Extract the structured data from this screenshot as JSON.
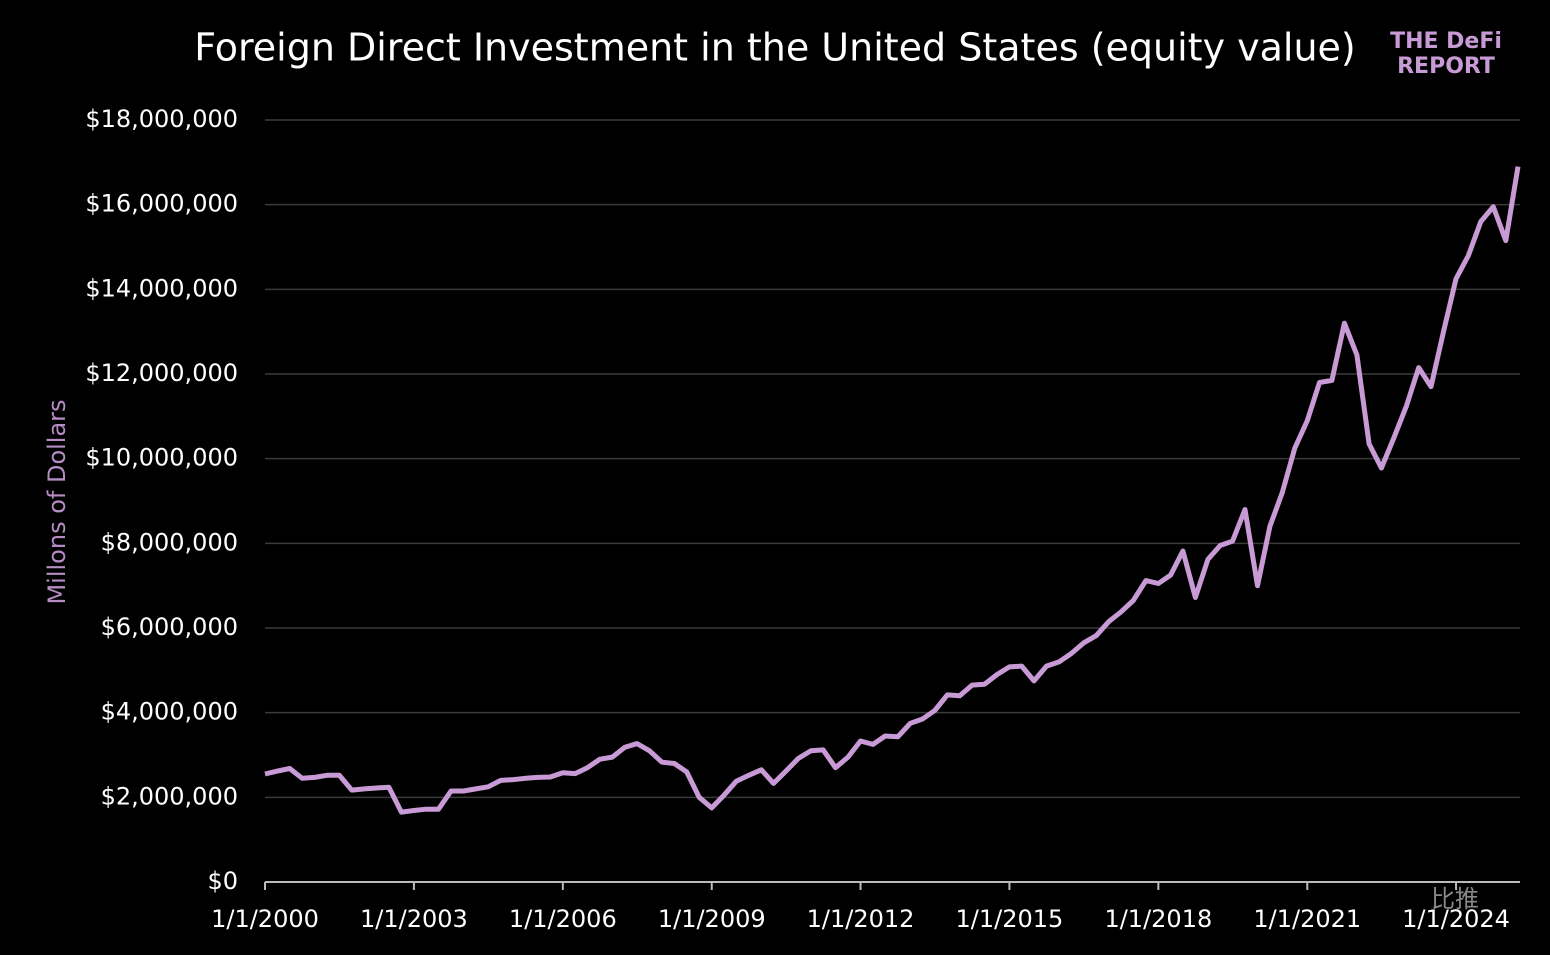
{
  "chart_data": {
    "type": "line",
    "title": "Foreign Direct Investment in the United States (equity value)",
    "logo": [
      "THE DeFi",
      "REPORT"
    ],
    "watermark": "比推",
    "y_label": "Millons of Dollars",
    "x": [
      "1/1/2000",
      "4/1/2000",
      "7/1/2000",
      "10/1/2000",
      "1/1/2001",
      "4/1/2001",
      "7/1/2001",
      "10/1/2001",
      "1/1/2002",
      "4/1/2002",
      "7/1/2002",
      "10/1/2002",
      "1/1/2003",
      "4/1/2003",
      "7/1/2003",
      "10/1/2003",
      "1/1/2004",
      "4/1/2004",
      "7/1/2004",
      "10/1/2004",
      "1/1/2005",
      "4/1/2005",
      "7/1/2005",
      "10/1/2005",
      "1/1/2006",
      "4/1/2006",
      "7/1/2006",
      "10/1/2006",
      "1/1/2007",
      "4/1/2007",
      "7/1/2007",
      "10/1/2007",
      "1/1/2008",
      "4/1/2008",
      "7/1/2008",
      "10/1/2008",
      "1/1/2009",
      "4/1/2009",
      "7/1/2009",
      "10/1/2009",
      "1/1/2010",
      "4/1/2010",
      "7/1/2010",
      "10/1/2010",
      "1/1/2011",
      "4/1/2011",
      "7/1/2011",
      "10/1/2011",
      "1/1/2012",
      "4/1/2012",
      "7/1/2012",
      "10/1/2012",
      "1/1/2013",
      "4/1/2013",
      "7/1/2013",
      "10/1/2013",
      "1/1/2014",
      "4/1/2014",
      "7/1/2014",
      "10/1/2014",
      "1/1/2015",
      "4/1/2015",
      "7/1/2015",
      "10/1/2015",
      "1/1/2016",
      "4/1/2016",
      "7/1/2016",
      "10/1/2016",
      "1/1/2017",
      "4/1/2017",
      "7/1/2017",
      "10/1/2017",
      "1/1/2018",
      "4/1/2018",
      "7/1/2018",
      "10/1/2018",
      "1/1/2019",
      "4/1/2019",
      "7/1/2019",
      "10/1/2019",
      "1/1/2020",
      "4/1/2020",
      "7/1/2020",
      "10/1/2020",
      "1/1/2021",
      "4/1/2021",
      "7/1/2021",
      "10/1/2021",
      "1/1/2022",
      "4/1/2022",
      "7/1/2022",
      "10/1/2022",
      "1/1/2023",
      "4/1/2023",
      "7/1/2023",
      "10/1/2023",
      "1/1/2024",
      "4/1/2024",
      "7/1/2024",
      "10/1/2024",
      "1/1/2025",
      "4/1/2025"
    ],
    "series": [
      {
        "name": "Foreign Direct Investment",
        "color": "#c99bd6",
        "values": [
          2550000,
          2620000,
          2680000,
          2450000,
          2470000,
          2520000,
          2520000,
          2170000,
          2200000,
          2220000,
          2240000,
          1650000,
          1690000,
          1720000,
          1720000,
          2150000,
          2150000,
          2200000,
          2250000,
          2400000,
          2420000,
          2450000,
          2470000,
          2480000,
          2580000,
          2560000,
          2700000,
          2900000,
          2950000,
          3180000,
          3270000,
          3100000,
          2830000,
          2800000,
          2600000,
          2000000,
          1750000,
          2050000,
          2380000,
          2520000,
          2650000,
          2330000,
          2620000,
          2920000,
          3100000,
          3120000,
          2700000,
          2950000,
          3330000,
          3250000,
          3450000,
          3430000,
          3750000,
          3850000,
          4050000,
          4420000,
          4400000,
          4650000,
          4670000,
          4900000,
          5080000,
          5100000,
          4750000,
          5100000,
          5200000,
          5400000,
          5650000,
          5820000,
          6150000,
          6380000,
          6650000,
          7120000,
          7050000,
          7250000,
          7820000,
          6720000,
          7620000,
          7950000,
          8050000,
          8800000,
          7000000,
          8400000,
          9200000,
          10250000,
          10900000,
          11800000,
          11850000,
          13200000,
          12450000,
          10350000,
          9780000,
          10500000,
          11250000,
          12150000,
          11700000,
          13000000,
          14250000,
          14800000,
          15600000,
          15950000,
          15150000,
          16900000
        ]
      }
    ],
    "xlim": [
      "1/1/2000",
      "4/1/2025"
    ],
    "xticks": [
      "1/1/2000",
      "1/1/2003",
      "1/1/2006",
      "1/1/2009",
      "1/1/2012",
      "1/1/2015",
      "1/1/2018",
      "1/1/2021",
      "1/1/2024"
    ],
    "ylim": [
      0,
      18000000
    ],
    "yticks": [
      {
        "value": 0,
        "label": "$0"
      },
      {
        "value": 2000000,
        "label": "$2,000,000"
      },
      {
        "value": 4000000,
        "label": "$4,000,000"
      },
      {
        "value": 6000000,
        "label": "$6,000,000"
      },
      {
        "value": 8000000,
        "label": "$8,000,000"
      },
      {
        "value": 10000000,
        "label": "$10,000,000"
      },
      {
        "value": 12000000,
        "label": "$12,000,000"
      },
      {
        "value": 14000000,
        "label": "$14,000,000"
      },
      {
        "value": 16000000,
        "label": "$16,000,000"
      },
      {
        "value": 18000000,
        "label": "$18,000,000"
      }
    ],
    "grid": true
  }
}
